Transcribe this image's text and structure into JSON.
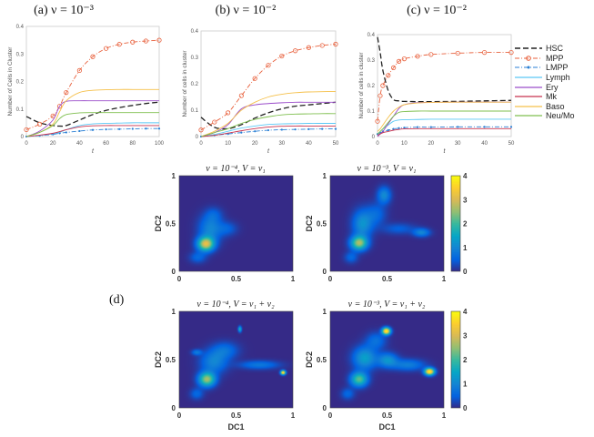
{
  "panel_d_label": "(d)",
  "legend": [
    {
      "name": "HSC",
      "color": "#222222",
      "style": "dashed",
      "marker": "none"
    },
    {
      "name": "MPP",
      "color": "#e8603c",
      "style": "dashdot",
      "marker": "circle"
    },
    {
      "name": "LMPP",
      "color": "#2a7fd4",
      "style": "dashdot",
      "marker": "star"
    },
    {
      "name": "Lymph",
      "color": "#5bc8f5",
      "style": "solid",
      "marker": "none"
    },
    {
      "name": "Ery",
      "color": "#9b4dca",
      "style": "solid",
      "marker": "none"
    },
    {
      "name": "Mk",
      "color": "#c8324e",
      "style": "solid",
      "marker": "none"
    },
    {
      "name": "Baso",
      "color": "#f5c04a",
      "style": "solid",
      "marker": "none"
    },
    {
      "name": "Neu/Mo",
      "color": "#7fbf4f",
      "style": "solid",
      "marker": "none"
    }
  ],
  "chart_data": [
    {
      "type": "line",
      "title": "(a) ν = 10⁻³",
      "xlabel": "t",
      "ylabel": "Number of Cells in Cluster",
      "xlim": [
        0,
        100
      ],
      "ylim": [
        0,
        0.4
      ],
      "xticks": [
        0,
        20,
        40,
        60,
        80,
        100
      ],
      "yticks": [
        0,
        0.1,
        0.2,
        0.3,
        0.4
      ],
      "grid": false,
      "x": [
        0,
        10,
        20,
        25,
        30,
        40,
        50,
        60,
        70,
        80,
        90,
        100
      ],
      "series": [
        {
          "name": "HSC",
          "values": [
            0.073,
            0.05,
            0.04,
            0.038,
            0.04,
            0.06,
            0.08,
            0.095,
            0.105,
            0.113,
            0.12,
            0.125
          ]
        },
        {
          "name": "MPP",
          "values": [
            0.025,
            0.045,
            0.075,
            0.11,
            0.16,
            0.24,
            0.29,
            0.32,
            0.335,
            0.343,
            0.347,
            0.35
          ]
        },
        {
          "name": "LMPP",
          "values": [
            0,
            0.003,
            0.008,
            0.012,
            0.015,
            0.02,
            0.024,
            0.026,
            0.027,
            0.028,
            0.029,
            0.029
          ]
        },
        {
          "name": "Lymph",
          "values": [
            0,
            0.004,
            0.01,
            0.015,
            0.025,
            0.04,
            0.046,
            0.048,
            0.049,
            0.05,
            0.05,
            0.05
          ]
        },
        {
          "name": "Ery",
          "values": [
            0,
            0.02,
            0.06,
            0.11,
            0.128,
            0.13,
            0.13,
            0.13,
            0.13,
            0.13,
            0.13,
            0.13
          ]
        },
        {
          "name": "Mk",
          "values": [
            0,
            0.005,
            0.012,
            0.018,
            0.025,
            0.035,
            0.039,
            0.04,
            0.04,
            0.04,
            0.04,
            0.04
          ]
        },
        {
          "name": "Baso",
          "values": [
            0,
            0.015,
            0.045,
            0.09,
            0.13,
            0.16,
            0.168,
            0.17,
            0.171,
            0.171,
            0.171,
            0.171
          ]
        },
        {
          "name": "Neu/Mo",
          "values": [
            0,
            0.015,
            0.04,
            0.065,
            0.08,
            0.086,
            0.087,
            0.087,
            0.087,
            0.087,
            0.087,
            0.087
          ]
        }
      ]
    },
    {
      "type": "line",
      "title": "(b) ν = 10⁻²",
      "xlabel": "t",
      "ylabel": "Number of cells in cluster",
      "xlim": [
        0,
        50
      ],
      "ylim": [
        0,
        0.4
      ],
      "xticks": [
        0,
        10,
        20,
        30,
        40,
        50
      ],
      "yticks": [
        0,
        0.1,
        0.2,
        0.3,
        0.4
      ],
      "grid": false,
      "x": [
        0,
        5,
        10,
        15,
        20,
        25,
        30,
        35,
        40,
        45,
        50
      ],
      "series": [
        {
          "name": "HSC",
          "values": [
            0.073,
            0.035,
            0.03,
            0.045,
            0.07,
            0.09,
            0.105,
            0.115,
            0.12,
            0.125,
            0.13
          ]
        },
        {
          "name": "MPP",
          "values": [
            0.025,
            0.055,
            0.09,
            0.155,
            0.22,
            0.27,
            0.305,
            0.325,
            0.337,
            0.345,
            0.35
          ]
        },
        {
          "name": "LMPP",
          "values": [
            0,
            0.005,
            0.01,
            0.015,
            0.02,
            0.024,
            0.026,
            0.027,
            0.028,
            0.029,
            0.029
          ]
        },
        {
          "name": "Lymph",
          "values": [
            0,
            0.008,
            0.02,
            0.032,
            0.04,
            0.046,
            0.048,
            0.049,
            0.05,
            0.05,
            0.05
          ]
        },
        {
          "name": "Ery",
          "values": [
            0,
            0.015,
            0.045,
            0.105,
            0.12,
            0.125,
            0.128,
            0.13,
            0.13,
            0.13,
            0.13
          ]
        },
        {
          "name": "Mk",
          "values": [
            0,
            0.005,
            0.013,
            0.022,
            0.03,
            0.036,
            0.039,
            0.04,
            0.04,
            0.04,
            0.04
          ]
        },
        {
          "name": "Baso",
          "values": [
            0,
            0.02,
            0.05,
            0.1,
            0.13,
            0.15,
            0.16,
            0.166,
            0.169,
            0.17,
            0.171
          ]
        },
        {
          "name": "Neu/Mo",
          "values": [
            0,
            0.015,
            0.03,
            0.05,
            0.065,
            0.075,
            0.082,
            0.085,
            0.086,
            0.087,
            0.087
          ]
        }
      ]
    },
    {
      "type": "line",
      "title": "(c) ν = 10⁻²",
      "xlabel": "t",
      "ylabel": "Number of cells in cluster",
      "xlim": [
        0,
        50
      ],
      "ylim": [
        0,
        0.4
      ],
      "xticks": [
        0,
        10,
        20,
        30,
        40,
        50
      ],
      "yticks": [
        0,
        0.1,
        0.2,
        0.3,
        0.4
      ],
      "grid": false,
      "x": [
        0,
        1,
        2,
        4,
        6,
        8,
        10,
        15,
        20,
        30,
        40,
        50
      ],
      "series": [
        {
          "name": "HSC",
          "values": [
            0.39,
            0.33,
            0.26,
            0.18,
            0.145,
            0.14,
            0.138,
            0.137,
            0.137,
            0.138,
            0.14,
            0.142
          ]
        },
        {
          "name": "MPP",
          "values": [
            0.06,
            0.16,
            0.2,
            0.24,
            0.27,
            0.295,
            0.305,
            0.315,
            0.322,
            0.327,
            0.33,
            0.33
          ]
        },
        {
          "name": "LMPP",
          "values": [
            0.01,
            0.015,
            0.02,
            0.025,
            0.03,
            0.033,
            0.035,
            0.037,
            0.037,
            0.038,
            0.038,
            0.038
          ]
        },
        {
          "name": "Lymph",
          "values": [
            0.01,
            0.02,
            0.03,
            0.045,
            0.06,
            0.065,
            0.066,
            0.067,
            0.068,
            0.068,
            0.068,
            0.068
          ]
        },
        {
          "name": "Ery",
          "values": [
            0,
            0.01,
            0.02,
            0.05,
            0.08,
            0.11,
            0.125,
            0.133,
            0.134,
            0.135,
            0.135,
            0.135
          ]
        },
        {
          "name": "Mk",
          "values": [
            0.005,
            0.01,
            0.015,
            0.02,
            0.025,
            0.028,
            0.03,
            0.031,
            0.031,
            0.031,
            0.031,
            0.031
          ]
        },
        {
          "name": "Baso",
          "values": [
            0.02,
            0.03,
            0.045,
            0.075,
            0.1,
            0.115,
            0.125,
            0.132,
            0.134,
            0.135,
            0.135,
            0.135
          ]
        },
        {
          "name": "Neu/Mo",
          "values": [
            0.01,
            0.02,
            0.03,
            0.055,
            0.08,
            0.095,
            0.098,
            0.1,
            0.1,
            0.1,
            0.1,
            0.1
          ]
        }
      ]
    },
    {
      "type": "heatmap",
      "title": "ν = 10⁻⁴,    V = v₁",
      "xlabel": "",
      "ylabel": "DC2",
      "xlim": [
        0,
        1
      ],
      "ylim": [
        0,
        1
      ],
      "xticks": [
        0,
        0.5,
        1
      ],
      "yticks": [
        0,
        0.5,
        1
      ],
      "clim": [
        0,
        4
      ],
      "colormap": "parula",
      "peaks": [
        [
          0.23,
          0.29,
          3.0,
          0.05,
          0.05
        ],
        [
          0.27,
          0.45,
          1.0,
          0.07,
          0.1
        ],
        [
          0.16,
          0.15,
          0.6,
          0.05,
          0.04
        ],
        [
          0.42,
          0.45,
          0.5,
          0.06,
          0.05
        ],
        [
          0.3,
          0.6,
          0.4,
          0.05,
          0.05
        ]
      ]
    },
    {
      "type": "heatmap",
      "title": "ν = 10⁻³,    V = v₁",
      "xlabel": "",
      "ylabel": "DC2",
      "xlim": [
        0,
        1
      ],
      "ylim": [
        0,
        1
      ],
      "xticks": [
        0,
        0.5,
        1
      ],
      "yticks": [
        0,
        0.5,
        1
      ],
      "clim": [
        0,
        4
      ],
      "colormap": "parula",
      "colorbar_ticks": [
        0,
        1,
        2,
        3,
        4
      ],
      "peaks": [
        [
          0.25,
          0.3,
          2.6,
          0.05,
          0.05
        ],
        [
          0.28,
          0.5,
          1.2,
          0.06,
          0.1
        ],
        [
          0.47,
          0.8,
          1.1,
          0.04,
          0.06
        ],
        [
          0.8,
          0.41,
          1.0,
          0.05,
          0.03
        ],
        [
          0.6,
          0.45,
          0.5,
          0.1,
          0.04
        ],
        [
          0.18,
          0.15,
          0.6,
          0.04,
          0.04
        ],
        [
          0.4,
          0.6,
          0.6,
          0.06,
          0.08
        ]
      ]
    },
    {
      "type": "heatmap",
      "title": "ν = 10⁻⁴,    V = v₁ + v₂",
      "xlabel": "DC1",
      "ylabel": "DC2",
      "xlim": [
        0,
        1
      ],
      "ylim": [
        0,
        1
      ],
      "xticks": [
        0,
        0.5,
        1
      ],
      "yticks": [
        0,
        0.5,
        1
      ],
      "clim": [
        0,
        4
      ],
      "colormap": "parula",
      "peaks": [
        [
          0.24,
          0.3,
          2.6,
          0.05,
          0.05
        ],
        [
          0.91,
          0.37,
          4,
          0.015,
          0.015
        ],
        [
          0.53,
          0.82,
          1.8,
          0.01,
          0.02
        ],
        [
          0.7,
          0.45,
          0.8,
          0.12,
          0.03
        ],
        [
          0.3,
          0.48,
          1.0,
          0.08,
          0.08
        ],
        [
          0.15,
          0.58,
          0.8,
          0.03,
          0.02
        ],
        [
          0.4,
          0.6,
          0.7,
          0.08,
          0.06
        ],
        [
          0.15,
          0.15,
          0.6,
          0.04,
          0.04
        ]
      ]
    },
    {
      "type": "heatmap",
      "title": "ν = 10⁻³,    V = v₁ + v₂",
      "xlabel": "DC1",
      "ylabel": "DC2",
      "xlim": [
        0,
        1
      ],
      "ylim": [
        0,
        1
      ],
      "xticks": [
        0,
        0.5,
        1
      ],
      "yticks": [
        0,
        0.5,
        1
      ],
      "clim": [
        0,
        4
      ],
      "colormap": "parula",
      "colorbar_ticks": [
        0,
        1,
        2,
        3,
        4
      ],
      "peaks": [
        [
          0.25,
          0.3,
          2.2,
          0.05,
          0.05
        ],
        [
          0.49,
          0.8,
          4,
          0.025,
          0.025
        ],
        [
          0.87,
          0.38,
          4,
          0.03,
          0.025
        ],
        [
          0.3,
          0.52,
          1.4,
          0.07,
          0.08
        ],
        [
          0.5,
          0.5,
          1.2,
          0.06,
          0.05
        ],
        [
          0.68,
          0.45,
          0.9,
          0.1,
          0.04
        ],
        [
          0.4,
          0.7,
          0.7,
          0.06,
          0.06
        ],
        [
          0.15,
          0.15,
          0.6,
          0.04,
          0.04
        ]
      ]
    }
  ]
}
